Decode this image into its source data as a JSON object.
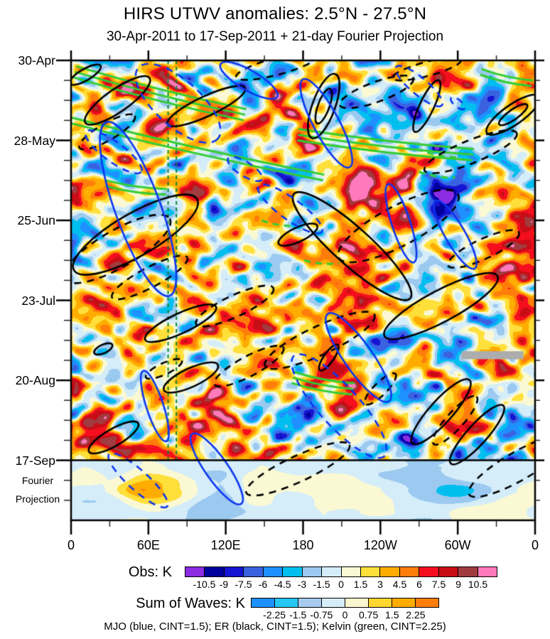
{
  "title": "HIRS UTWV anomalies: 2.5°N - 27.5°N",
  "subtitle": "30-Apr-2011 to 17-Sep-2011 + 21-day Fourier Projection",
  "chart_data": {
    "type": "heatmap",
    "title": "HIRS UTWV anomalies: 2.5°N - 27.5°N",
    "subtitle": "30-Apr-2011 to 17-Sep-2011 + 21-day Fourier Projection",
    "x_axis": {
      "tick_labels": [
        "0",
        "60E",
        "120E",
        "180",
        "120W",
        "60W",
        "0"
      ],
      "major_tick_lons": [
        0,
        60,
        120,
        180,
        240,
        300,
        360
      ],
      "minor_tick_deg": 30,
      "range_deg": [
        0,
        360
      ]
    },
    "y_axis": {
      "tick_labels": [
        "30-Apr",
        "28-May",
        "25-Jun",
        "23-Jul",
        "20-Aug",
        "17-Sep"
      ],
      "major_tick_days": [
        0,
        28,
        56,
        84,
        112,
        140
      ],
      "minor_tick_interval_days": 7,
      "obs_span_days": 140,
      "fourier_projection_days": 21,
      "fourier_label_lines": [
        "Fourier",
        "Projection"
      ]
    },
    "colorbars": [
      {
        "label": "Obs: K",
        "units": "K",
        "levels": [
          -10.5,
          -9,
          -7.5,
          -6,
          -4.5,
          -3,
          -1.5,
          0,
          1.5,
          3,
          4.5,
          6,
          7.5,
          9,
          10.5
        ],
        "tick_labels": [
          "-10.5",
          "-9",
          "-7.5",
          "-6",
          "-4.5",
          "-3",
          "-1.5",
          "0",
          "1.5",
          "3",
          "4.5",
          "6",
          "7.5",
          "9",
          "10.5"
        ],
        "colors": [
          "#8B2BE2",
          "#00009C",
          "#1414D2",
          "#3A62E0",
          "#1E90FF",
          "#00BFEF",
          "#9CC9EF",
          "#D4EDF9",
          "#FBF9D4",
          "#FFDF3A",
          "#FFAC00",
          "#FF7D0A",
          "#F50F1E",
          "#C80D16",
          "#A03C40",
          "#FF79BC"
        ]
      },
      {
        "label": "Sum of Waves: K",
        "units": "K",
        "levels": [
          -2.25,
          -1.5,
          -0.75,
          0,
          0.75,
          1.5,
          2.25
        ],
        "tick_labels": [
          "-2.25",
          "-1.5",
          "-0.75",
          "0",
          "0.75",
          "1.5",
          "2.25"
        ],
        "colors": [
          "#1E90FF",
          "#25C8F5",
          "#A6CBEF",
          "#D4EDF9",
          "#FBF7CE",
          "#FFD62E",
          "#FFAC00",
          "#FF7D0A"
        ]
      }
    ],
    "caption": "MJO (blue, CINT=1.5); ER (black, CINT=1.5); Kelvin (green, CINT=2.25)",
    "wave_contours": {
      "mjo": {
        "color_name": "blue",
        "color": "#0C36F0",
        "cint_k": 1.5
      },
      "er": {
        "color_name": "black",
        "color": "#000000",
        "cint_k": 1.5
      },
      "kelvin": {
        "color_name": "green",
        "color": "#33CC33",
        "cint_k": 2.25
      }
    },
    "reference_lines": {
      "vertical_dashed_green_lons": [
        75.3,
        81.7
      ],
      "color": "#0E8636",
      "span_days": [
        0,
        140
      ]
    },
    "separator_line_day": 140,
    "missing_data_bar": {
      "lon_start": 303,
      "lon_end": 351,
      "day_start": 101.8,
      "day_end": 104.6,
      "color": "#ADADAD"
    },
    "overlays": {
      "_ellipse_format": "[lon_deg, day, rx_px, ry_px, tilt_deg, dashed01]",
      "mjo_ellipses": [
        [
          52,
          52,
          130,
          32,
          70,
          0
        ],
        [
          83,
          15,
          75,
          32,
          42,
          1
        ],
        [
          33,
          32,
          48,
          14,
          36,
          1
        ],
        [
          138,
          7,
          46,
          14,
          30,
          0
        ],
        [
          135,
          38,
          28,
          10,
          32,
          1
        ],
        [
          198,
          22,
          70,
          18,
          62,
          0
        ],
        [
          256,
          57,
          58,
          13,
          72,
          0
        ],
        [
          170,
          52,
          55,
          15,
          36,
          1
        ],
        [
          298,
          61,
          55,
          14,
          60,
          0
        ],
        [
          223,
          104,
          75,
          20,
          55,
          0
        ],
        [
          208,
          121,
          95,
          28,
          48,
          1
        ],
        [
          65,
          121,
          52,
          12,
          72,
          0
        ],
        [
          113,
          143,
          60,
          16,
          55,
          0
        ],
        [
          52,
          147,
          55,
          14,
          42,
          1
        ],
        [
          270,
          9,
          42,
          12,
          40,
          1
        ],
        [
          300,
          15,
          12,
          5,
          40,
          1
        ]
      ],
      "er_ellipses": [
        [
          36,
          14,
          55,
          16,
          -35,
          0
        ],
        [
          28,
          25,
          45,
          12,
          -30,
          1
        ],
        [
          105,
          16,
          60,
          14,
          -25,
          0
        ],
        [
          196,
          16,
          48,
          16,
          -70,
          0
        ],
        [
          196,
          16,
          26,
          8,
          -70,
          0
        ],
        [
          276,
          16,
          40,
          10,
          -65,
          0
        ],
        [
          237,
          11,
          55,
          14,
          -20,
          1
        ],
        [
          343,
          19,
          45,
          14,
          -35,
          0
        ],
        [
          343,
          19,
          24,
          7,
          -35,
          0
        ],
        [
          36,
          66,
          85,
          26,
          -30,
          1
        ],
        [
          61,
          76,
          60,
          14,
          -28,
          1
        ],
        [
          50,
          61,
          100,
          30,
          -30,
          0
        ],
        [
          85,
          92,
          55,
          14,
          -25,
          0
        ],
        [
          127,
          86,
          60,
          15,
          -25,
          1
        ],
        [
          176,
          61,
          30,
          10,
          -25,
          0
        ],
        [
          254,
          58,
          95,
          28,
          -28,
          1
        ],
        [
          287,
          86,
          90,
          22,
          -28,
          0
        ],
        [
          320,
          66,
          55,
          14,
          -25,
          1
        ],
        [
          218,
          65,
          110,
          26,
          42,
          0
        ],
        [
          193,
          98,
          85,
          20,
          -25,
          1
        ],
        [
          93,
          111,
          42,
          13,
          -25,
          0
        ],
        [
          138,
          107,
          55,
          14,
          -28,
          1
        ],
        [
          25,
          101,
          14,
          6,
          -25,
          0
        ],
        [
          287,
          123,
          60,
          16,
          -48,
          0
        ],
        [
          315,
          131,
          55,
          14,
          -48,
          0
        ],
        [
          298,
          126,
          45,
          12,
          -48,
          1
        ],
        [
          200,
          104,
          22,
          7,
          -55,
          0
        ],
        [
          240,
          115,
          30,
          9,
          -45,
          1
        ],
        [
          347,
          142,
          80,
          20,
          -30,
          1
        ],
        [
          176,
          143,
          80,
          18,
          -25,
          1
        ],
        [
          72,
          108,
          28,
          8,
          -25,
          1
        ],
        [
          33,
          132,
          40,
          12,
          -30,
          0
        ],
        [
          11,
          5,
          25,
          8,
          -30,
          0
        ],
        [
          160,
          2,
          60,
          12,
          -15,
          1
        ],
        [
          276,
          3,
          50,
          10,
          -15,
          1
        ],
        [
          310,
          32,
          70,
          16,
          -22,
          1
        ]
      ],
      "_line_format": "[lon1, day1, lon2, day2, n_parallel, dashed01]",
      "kelvin_lines": [
        [
          3,
          4,
          135,
          19,
          3,
          0
        ],
        [
          0,
          21,
          196,
          41,
          2,
          0
        ],
        [
          176,
          26,
          312,
          33,
          3,
          0
        ],
        [
          27,
          43,
          74,
          46,
          2,
          0
        ],
        [
          148,
          56,
          176,
          58,
          1,
          1
        ],
        [
          181,
          70,
          208,
          71,
          1,
          1
        ],
        [
          172,
          111,
          219,
          115,
          3,
          0
        ],
        [
          318,
          4,
          358,
          8,
          2,
          0
        ],
        [
          268,
          31,
          300,
          34,
          1,
          1
        ],
        [
          270,
          39,
          298,
          41,
          1,
          1
        ]
      ],
      "_hotspot_format": "[lon_deg, day, amplitude_K, radius_px]",
      "anomaly_hotspots": [
        [
          79,
          9,
          9,
          14
        ],
        [
          220,
          45,
          9,
          20
        ],
        [
          210,
          119,
          8,
          22
        ],
        [
          287,
          13,
          7,
          18
        ],
        [
          44,
          9,
          6,
          14
        ],
        [
          254,
          3,
          6,
          14
        ],
        [
          331,
          73,
          5,
          16
        ],
        [
          110,
          118,
          7,
          18
        ],
        [
          17,
          81,
          6,
          16
        ],
        [
          100,
          45,
          7,
          16
        ],
        [
          215,
          62,
          6,
          25
        ],
        [
          262,
          41,
          11,
          12
        ],
        [
          229,
          80,
          7,
          20
        ],
        [
          138,
          9,
          -7,
          16
        ],
        [
          198,
          41,
          -6,
          18
        ],
        [
          72,
          54,
          -6,
          18
        ],
        [
          287,
          54,
          -6,
          20
        ],
        [
          320,
          13,
          -7,
          16
        ],
        [
          187,
          123,
          -6,
          18
        ],
        [
          265,
          133,
          -6,
          18
        ],
        [
          254,
          100,
          -5,
          25
        ],
        [
          310,
          41,
          -5,
          18
        ]
      ],
      "fourier_hotspots": [
        [
          55,
          150,
          3.5,
          26
        ],
        [
          120,
          153,
          -2.5,
          30
        ],
        [
          280,
          152,
          -2.8,
          40
        ],
        [
          165,
          157,
          -2,
          26
        ],
        [
          10,
          144,
          1.5,
          18
        ]
      ]
    }
  }
}
